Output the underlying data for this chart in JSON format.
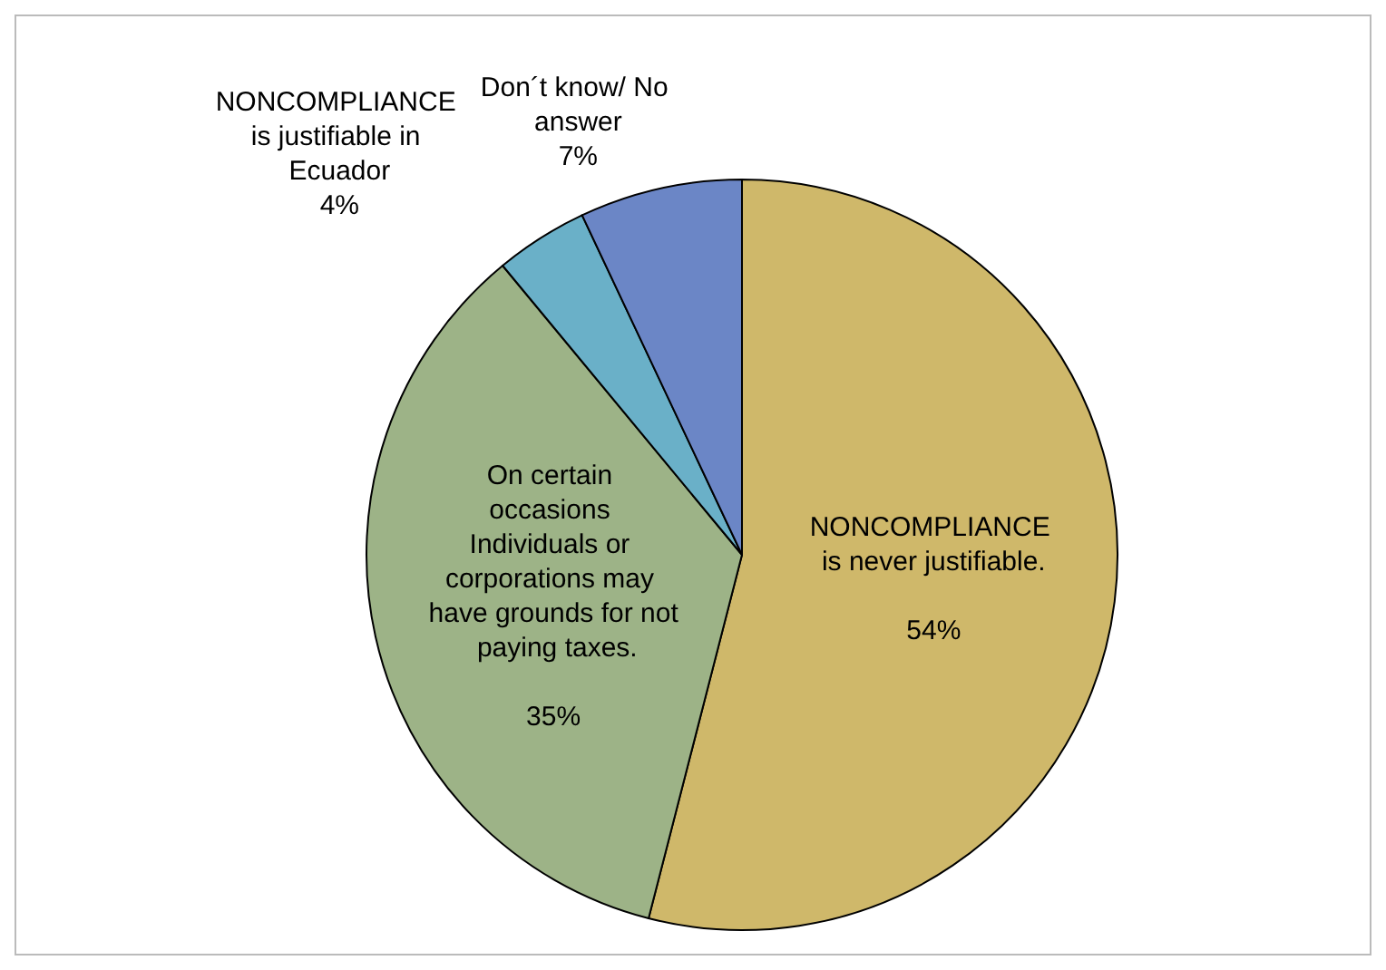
{
  "chart_data": {
    "type": "pie",
    "categories": [
      "NONCOMPLIANCE is never justifiable.",
      "On certain occasions Individuals or corporations may have grounds for not paying taxes.",
      "NONCOMPLIANCE is justifiable in Ecuador",
      "Don´t know/ No answer"
    ],
    "values": [
      54,
      35,
      4,
      7
    ],
    "value_labels": [
      "54%",
      "35%",
      "4%",
      "7%"
    ],
    "colors": [
      "#cfb86a",
      "#9db387",
      "#6ab0c8",
      "#6b86c6"
    ],
    "legend": false
  }
}
